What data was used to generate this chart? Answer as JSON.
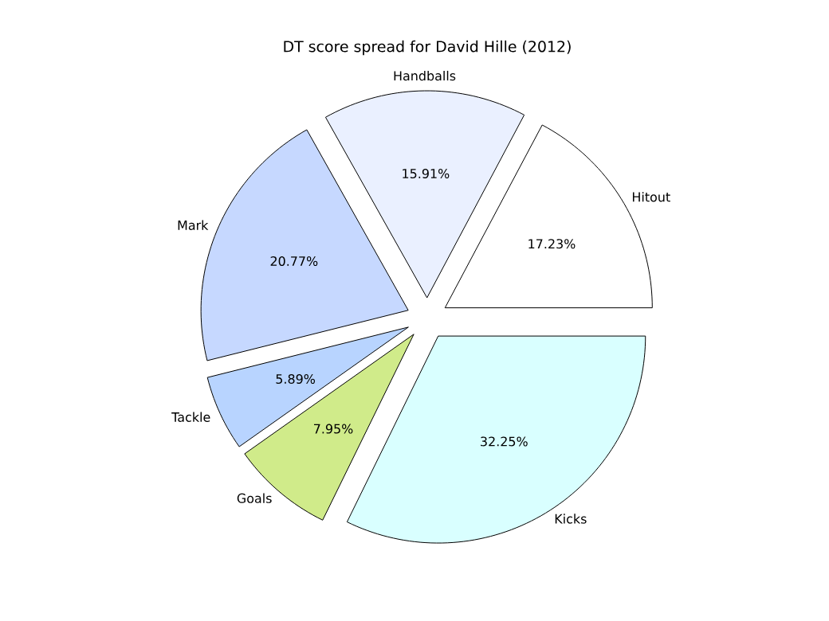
{
  "chart_data": {
    "type": "pie",
    "title": "DT score spread for David Hille (2012)",
    "categories": [
      "Hitout",
      "Handballs",
      "Mark",
      "Tackle",
      "Goals",
      "Kicks"
    ],
    "values": [
      17.23,
      15.91,
      20.77,
      5.89,
      7.95,
      32.25
    ],
    "value_labels": [
      "17.23%",
      "15.91%",
      "20.77%",
      "5.89%",
      "7.95%",
      "32.25%"
    ],
    "colors": [
      "#ffffff",
      "#eaf0ff",
      "#c6d8ff",
      "#b8d4ff",
      "#d0eb8a",
      "#d9ffff"
    ]
  }
}
